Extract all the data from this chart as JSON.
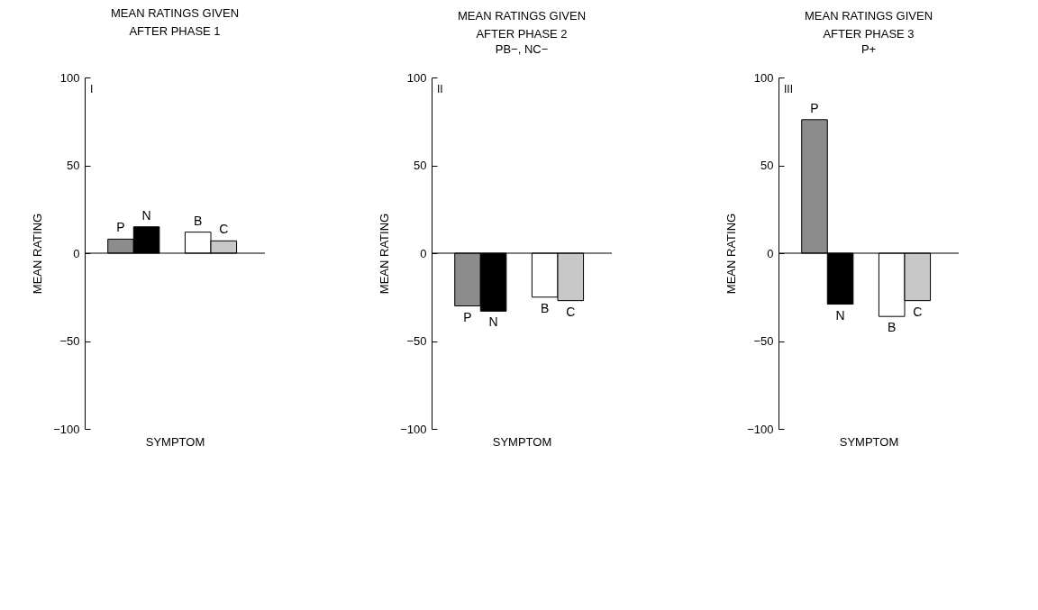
{
  "chart_data": [
    {
      "type": "bar",
      "title": "MEAN RATINGS GIVEN\nAFTER PHASE 1",
      "xlabel": "SYMPTOM",
      "ylabel": "MEAN RATING",
      "categories": [
        "P",
        "N",
        "B",
        "C"
      ],
      "values": [
        8,
        15,
        12,
        7
      ],
      "colors": [
        "#8c8c8c",
        "#000000",
        "#ffffff",
        "#c8c8c8"
      ],
      "ylim": [
        -100,
        100
      ],
      "yticks": [
        -100,
        -50,
        0,
        50,
        100
      ],
      "tick_labels": "y",
      "annotations": [
        "I"
      ]
    },
    {
      "type": "bar",
      "title": "MEAN RATINGS GIVEN\nAFTER PHASE 2",
      "subtitle": "PB−,  NC−",
      "xlabel": "SYMPTOM",
      "ylabel": "MEAN RATING",
      "categories": [
        "P",
        "N",
        "B",
        "C"
      ],
      "values": [
        -30,
        -33,
        -25,
        -27
      ],
      "colors": [
        "#8c8c8c",
        "#000000",
        "#ffffff",
        "#c8c8c8"
      ],
      "ylim": [
        -100,
        100
      ],
      "yticks": [
        -100,
        -50,
        0,
        50,
        100
      ],
      "tick_labels": "y",
      "annotations": [
        "II"
      ]
    },
    {
      "type": "bar",
      "title": "MEAN RATINGS GIVEN\nAFTER PHASE 3",
      "subtitle": "P+",
      "xlabel": "SYMPTOM",
      "ylabel": "MEAN RATING",
      "categories": [
        "P",
        "N",
        "B",
        "C"
      ],
      "values": [
        76,
        -29,
        -36,
        -27
      ],
      "colors": [
        "#8c8c8c",
        "#000000",
        "#ffffff",
        "#c8c8c8"
      ],
      "ylim": [
        -100,
        100
      ],
      "yticks": [
        -100,
        -50,
        0,
        50,
        100
      ],
      "tick_labels": "y",
      "annotations": [
        "III"
      ]
    }
  ]
}
